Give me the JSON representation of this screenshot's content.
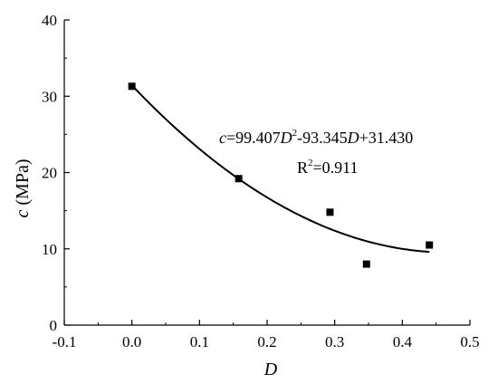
{
  "chart_data": {
    "type": "scatter",
    "x": [
      0.0,
      0.158,
      0.293,
      0.347,
      0.44
    ],
    "y": [
      31.3,
      19.2,
      14.8,
      8.0,
      10.5
    ],
    "fit": {
      "type": "quadratic",
      "coefficients": [
        99.407,
        -93.345,
        31.43
      ],
      "x_range": [
        0.0,
        0.44
      ],
      "r2": 0.911
    },
    "xlim": [
      -0.1,
      0.5
    ],
    "ylim": [
      0,
      40
    ],
    "x_ticks": [
      "-0.1",
      "0.0",
      "0.1",
      "0.2",
      "0.3",
      "0.4",
      "0.5"
    ],
    "y_ticks": [
      "0",
      "10",
      "20",
      "30",
      "40"
    ],
    "xlabel": "D",
    "ylabel_var": "c",
    "ylabel_unit": "(MPa)",
    "annotation": {
      "eq_var": "c",
      "eq_a": "=99.407",
      "eq_var2": "D",
      "eq_sup": "2",
      "eq_b": "-93.345",
      "eq_var3": "D",
      "eq_c": "+31.430",
      "r_label": "R",
      "r_sup": "2",
      "r_value": "=0.911"
    },
    "grid": false,
    "marker": "square",
    "colors": {
      "line": "#000000",
      "marker": "#000000",
      "axis": "#000000"
    }
  }
}
